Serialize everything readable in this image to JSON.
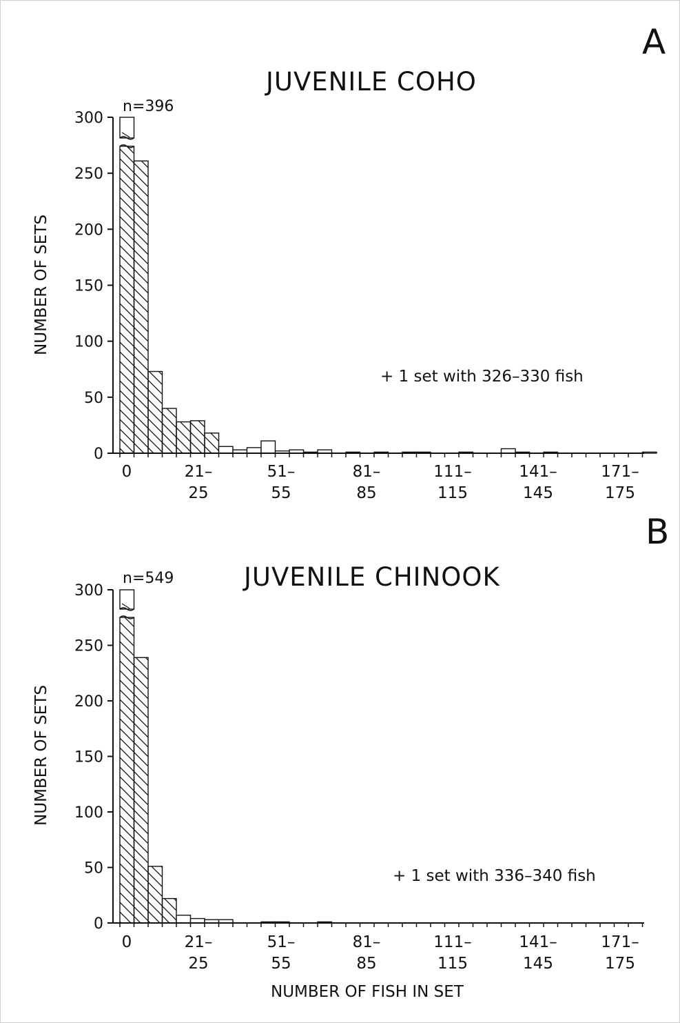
{
  "chart_data": [
    {
      "type": "bar",
      "panel": "A",
      "title": "JUVENILE COHO",
      "n_label": "n=396",
      "ylabel": "NUMBER OF SETS",
      "xlabel": "",
      "note": "+ 1 set with 326–330 fish",
      "ylim": [
        0,
        300
      ],
      "yticks": [
        "0",
        "50",
        "100",
        "150",
        "200",
        "250",
        "300"
      ],
      "xtick_labels": [
        [
          "0",
          ""
        ],
        [
          "21–",
          "25"
        ],
        [
          "51–",
          "55"
        ],
        [
          "81–",
          "85"
        ],
        [
          "111–",
          "115"
        ],
        [
          "141–",
          "145"
        ],
        [
          "171–",
          "175"
        ]
      ],
      "bin_width": 5,
      "hatched_bins": 7,
      "values": [
        396,
        261,
        73,
        40,
        28,
        29,
        18,
        6,
        3,
        5,
        11,
        2,
        3,
        1,
        3,
        0,
        1,
        0,
        1,
        0,
        1,
        1,
        0,
        0,
        1,
        0,
        0,
        4,
        1,
        0,
        1,
        0,
        0,
        0,
        0,
        0,
        0,
        1
      ]
    },
    {
      "type": "bar",
      "panel": "B",
      "title": "JUVENILE CHINOOK",
      "n_label": "n=549",
      "ylabel": "NUMBER OF SETS",
      "xlabel": "NUMBER OF FISH IN SET",
      "note": "+ 1 set with 336–340 fish",
      "ylim": [
        0,
        300
      ],
      "yticks": [
        "0",
        "50",
        "100",
        "150",
        "200",
        "250",
        "300"
      ],
      "xtick_labels": [
        [
          "0",
          ""
        ],
        [
          "21–",
          "25"
        ],
        [
          "51–",
          "55"
        ],
        [
          "81–",
          "85"
        ],
        [
          "111–",
          "115"
        ],
        [
          "141–",
          "145"
        ],
        [
          "171–",
          "175"
        ]
      ],
      "bin_width": 5,
      "hatched_bins": 4,
      "values": [
        549,
        239,
        51,
        22,
        7,
        4,
        3,
        3,
        0,
        0,
        1,
        1,
        0,
        0,
        1,
        0,
        0,
        0,
        0,
        0,
        0,
        0,
        0,
        0,
        0,
        0,
        0,
        0,
        0,
        0,
        0,
        0,
        0,
        0,
        0,
        0,
        0,
        0
      ]
    }
  ]
}
